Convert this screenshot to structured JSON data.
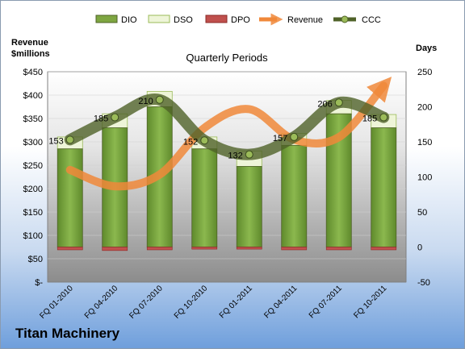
{
  "chart_data": {
    "type": "bar",
    "title": "Quarterly Periods",
    "left_axis_label_line1": "Revenue",
    "left_axis_label_line2": "$millions",
    "right_axis_label": "Days",
    "categories": [
      "FQ 01-2010",
      "FQ 04-2010",
      "FQ 07-2010",
      "FQ 10-2010",
      "FQ 01-2011",
      "FQ 04-2011",
      "FQ 07-2011",
      "FQ 10-2011"
    ],
    "left_ticks": [
      "$-",
      "$50",
      "$100",
      "$150",
      "$200",
      "$250",
      "$300",
      "$350",
      "$400",
      "$450"
    ],
    "left_ylim": [
      0,
      450
    ],
    "right_ticks": [
      "-50",
      "0",
      "50",
      "100",
      "150",
      "200",
      "250"
    ],
    "right_ylim": [
      -50,
      250
    ],
    "legend_position": "top",
    "legend": [
      "DIO",
      "DSO",
      "DPO",
      "Revenue",
      "CCC"
    ],
    "series": [
      {
        "name": "DIO",
        "axis": "right",
        "color": "#7ea641",
        "values": [
          140,
          170,
          200,
          140,
          115,
          145,
          190,
          170
        ]
      },
      {
        "name": "DSO",
        "axis": "right",
        "color": "#eef5d8",
        "values": [
          17,
          20,
          22,
          17,
          22,
          17,
          19,
          19
        ]
      },
      {
        "name": "DPO",
        "axis": "right",
        "color": "#c0504d",
        "values": [
          -4,
          -5,
          -4,
          -3,
          -3,
          -4,
          -4,
          -4
        ]
      },
      {
        "name": "Revenue",
        "axis": "left",
        "color": "#f0883a",
        "values": [
          240,
          205,
          230,
          330,
          370,
          305,
          310,
          420
        ]
      },
      {
        "name": "CCC",
        "axis": "right",
        "color": "#4f6228",
        "values": [
          153,
          185,
          210,
          152,
          132,
          157,
          206,
          185
        ]
      }
    ],
    "ccc_labels": [
      "153",
      "185",
      "210",
      "152",
      "132",
      "157",
      "206",
      "185"
    ]
  },
  "footer": {
    "company": "Titan Machinery"
  }
}
